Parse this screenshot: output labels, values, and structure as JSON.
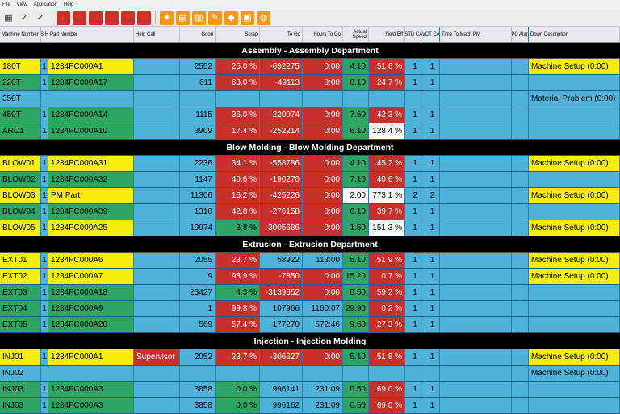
{
  "menu": [
    "File",
    "View",
    "Application",
    "Help"
  ],
  "toolbar_icons": [
    {
      "name": "grid-icon",
      "glyph": "▦",
      "style": "plain"
    },
    {
      "name": "checklist-icon",
      "glyph": "✓",
      "style": "plain"
    },
    {
      "name": "checklist-all-icon",
      "glyph": "✓",
      "style": "plain"
    },
    {
      "name": "warning-icon",
      "glyph": "▲",
      "style": "red"
    },
    {
      "name": "search-alert-icon",
      "glyph": "⚙",
      "style": "red"
    },
    {
      "name": "help-icon",
      "glyph": "?",
      "style": "red"
    },
    {
      "name": "refresh-icon",
      "glyph": "↻",
      "style": "red"
    },
    {
      "name": "robot-arm-icon",
      "glyph": "⚒",
      "style": "red"
    },
    {
      "name": "settings-icon",
      "glyph": "⚙",
      "style": "red"
    },
    {
      "name": "burst-icon",
      "glyph": "✷",
      "style": "orange"
    },
    {
      "name": "document-icon",
      "glyph": "▤",
      "style": "orange"
    },
    {
      "name": "report-icon",
      "glyph": "▥",
      "style": "orange"
    },
    {
      "name": "wrench-icon",
      "glyph": "✎",
      "style": "orange"
    },
    {
      "name": "tag-icon",
      "glyph": "◆",
      "style": "orange"
    },
    {
      "name": "panel-icon",
      "glyph": "▣",
      "style": "orange"
    },
    {
      "name": "globe-icon",
      "glyph": "◍",
      "style": "orange"
    }
  ],
  "columns": [
    {
      "key": "machine",
      "label": "Machine Number",
      "align": "l"
    },
    {
      "key": "sh",
      "label": "S H",
      "align": "c"
    },
    {
      "key": "part",
      "label": "Part Number",
      "align": "l"
    },
    {
      "key": "help",
      "label": "Help Call",
      "align": "l"
    },
    {
      "key": "good",
      "label": "Good",
      "align": "r"
    },
    {
      "key": "scrap",
      "label": "Scrap",
      "align": "r"
    },
    {
      "key": "togo",
      "label": "To Go",
      "align": "r"
    },
    {
      "key": "hours",
      "label": "Hours To Go",
      "align": "r"
    },
    {
      "key": "speed",
      "label": "Actual Speed",
      "align": "r"
    },
    {
      "key": "yield",
      "label": "Yield Eff",
      "align": "r"
    },
    {
      "key": "std",
      "label": "STD CAV",
      "align": "c"
    },
    {
      "key": "act",
      "label": "ACT CAV",
      "align": "c"
    },
    {
      "key": "pm",
      "label": "Time To Mach PM",
      "align": "l"
    },
    {
      "key": "spc",
      "label": "SPC Alarm",
      "align": "c"
    },
    {
      "key": "down",
      "label": "Down Description",
      "align": "l"
    }
  ],
  "departments": [
    {
      "title": "Assembly - Assembly Department",
      "rows": [
        {
          "machine": "180T",
          "mcolor": "yellow",
          "sh": "1",
          "part": "1234FC000A1",
          "help": "",
          "good": "2552",
          "scrap": "25.0 %",
          "togo": "-692275",
          "hours": "0:00",
          "speed": "4.10",
          "scolor": "green",
          "yield": "51.6 %",
          "ycolor": "red",
          "std": "1",
          "act": "1",
          "down": "Machine Setup (0:00)",
          "dcolor": "yellow"
        },
        {
          "machine": "220T",
          "mcolor": "green",
          "sh": "1",
          "part": "1234FC000A17",
          "help": "",
          "good": "611",
          "scrap": "63.0 %",
          "togo": "-49113",
          "hours": "0:00",
          "speed": "8.10",
          "scolor": "green",
          "yield": "24.7 %",
          "ycolor": "red",
          "std": "1",
          "act": "1",
          "down": "",
          "dcolor": "blue"
        },
        {
          "machine": "350T",
          "mcolor": "blue",
          "sh": "",
          "part": "",
          "help": "",
          "good": "",
          "scrap": "",
          "togo": "",
          "hours": "",
          "speed": "",
          "scolor": "blue",
          "yield": "",
          "ycolor": "blue",
          "std": "",
          "act": "",
          "down": "Material Problem (0:00)",
          "dcolor": "blue"
        },
        {
          "machine": "450T",
          "mcolor": "green",
          "sh": "1",
          "part": "1234FC000A14",
          "help": "",
          "good": "1115",
          "scrap": "36.0 %",
          "togo": "-220074",
          "hours": "0:00",
          "speed": "7.60",
          "scolor": "green",
          "yield": "42.3 %",
          "ycolor": "red",
          "std": "1",
          "act": "1",
          "down": "",
          "dcolor": "blue"
        },
        {
          "machine": "ARC1",
          "mcolor": "green",
          "sh": "1",
          "part": "1234FC000A10",
          "help": "",
          "good": "3909",
          "scrap": "17.4 %",
          "togo": "-252214",
          "hours": "0:00",
          "speed": "6.10",
          "scolor": "green",
          "yield": "128.4 %",
          "ycolor": "white",
          "std": "1",
          "act": "1",
          "down": "",
          "dcolor": "blue"
        }
      ]
    },
    {
      "title": "Blow Molding - Blow Molding Department",
      "rows": [
        {
          "machine": "BLOW01",
          "mcolor": "yellow",
          "sh": "1",
          "part": "1234FC000A31",
          "help": "",
          "good": "2236",
          "scrap": "34.1 %",
          "togo": "-558786",
          "hours": "0:00",
          "speed": "4.10",
          "scolor": "green",
          "yield": "45.2 %",
          "ycolor": "red",
          "std": "1",
          "act": "1",
          "down": "Machine Setup (0:00)",
          "dcolor": "yellow"
        },
        {
          "machine": "BLOW02",
          "mcolor": "green",
          "sh": "1",
          "part": "1234FC000A32",
          "help": "",
          "good": "1147",
          "scrap": "40.6 %",
          "togo": "-190270",
          "hours": "0:00",
          "speed": "7.10",
          "scolor": "green",
          "yield": "40.6 %",
          "ycolor": "red",
          "std": "1",
          "act": "1",
          "down": "",
          "dcolor": "blue"
        },
        {
          "machine": "BLOW03",
          "mcolor": "yellow",
          "sh": "1",
          "part": "PM Part",
          "help": "",
          "good": "11306",
          "scrap": "16.2 %",
          "togo": "-425226",
          "hours": "0:00",
          "speed": "2.00",
          "scolor": "white",
          "yield": "773.1 %",
          "ycolor": "white",
          "std": "2",
          "act": "2",
          "down": "Machine Setup (0:00)",
          "dcolor": "yellow"
        },
        {
          "machine": "BLOW04",
          "mcolor": "green",
          "sh": "1",
          "part": "1234FC000A39",
          "help": "",
          "good": "1310",
          "scrap": "42.8 %",
          "togo": "-276158",
          "hours": "0:00",
          "speed": "6.10",
          "scolor": "green",
          "yield": "39.7 %",
          "ycolor": "red",
          "std": "1",
          "act": "1",
          "down": "",
          "dcolor": "blue"
        },
        {
          "machine": "BLOW05",
          "mcolor": "yellow",
          "sh": "1",
          "part": "1234FC000A25",
          "help": "",
          "good": "19974",
          "scrap": "3.8 %",
          "togo": "-3005686",
          "hours": "0:00",
          "speed": "1.50",
          "scolor": "green",
          "yield": "151.3 %",
          "ycolor": "white",
          "std": "1",
          "act": "1",
          "down": "Machine Setup (0:00)",
          "dcolor": "yellow",
          "scrapcolor": "green"
        }
      ]
    },
    {
      "title": "Extrusion - Extrusion Department",
      "rows": [
        {
          "machine": "EXT01",
          "mcolor": "yellow",
          "sh": "1",
          "part": "1234FC000A6",
          "help": "",
          "good": "2055",
          "scrap": "23.7 %",
          "togo": "58922",
          "hours": "113:00",
          "speed": "5.10",
          "scolor": "green",
          "yield": "51.9 %",
          "ycolor": "red",
          "std": "1",
          "act": "1",
          "down": "Machine Setup (0:00)",
          "dcolor": "yellow",
          "togocolor": "blue",
          "hourscolor": "blue"
        },
        {
          "machine": "EXT02",
          "mcolor": "yellow",
          "sh": "1",
          "part": "1234FC000A7",
          "help": "",
          "good": "9",
          "scrap": "98.9 %",
          "togo": "-7850",
          "hours": "0:00",
          "speed": "15.20",
          "scolor": "green",
          "yield": "0.7 %",
          "ycolor": "red",
          "std": "1",
          "act": "1",
          "down": "Machine Setup (0:00)",
          "dcolor": "yellow"
        },
        {
          "machine": "EXT03",
          "mcolor": "green",
          "sh": "1",
          "part": "1234FC000A18",
          "help": "",
          "good": "23427",
          "scrap": "4.3 %",
          "togo": "-3139652",
          "hours": "0:00",
          "speed": "0.50",
          "scolor": "green",
          "yield": "59.2 %",
          "ycolor": "red",
          "std": "1",
          "act": "1",
          "down": "",
          "dcolor": "blue",
          "scrapcolor": "green"
        },
        {
          "machine": "EXT04",
          "mcolor": "green",
          "sh": "1",
          "part": "1234FC000A9",
          "help": "",
          "good": "1",
          "scrap": "99.8 %",
          "togo": "107966",
          "hours": "1160:07",
          "speed": "29.90",
          "scolor": "green",
          "yield": "0.2 %",
          "ycolor": "red",
          "std": "1",
          "act": "1",
          "down": "",
          "dcolor": "blue",
          "togocolor": "blue",
          "hourscolor": "blue"
        },
        {
          "machine": "EXT05",
          "mcolor": "green",
          "sh": "1",
          "part": "1234FC000A20",
          "help": "",
          "good": "569",
          "scrap": "57.4 %",
          "togo": "177270",
          "hours": "572:46",
          "speed": "9.60",
          "scolor": "green",
          "yield": "27.3 %",
          "ycolor": "red",
          "std": "1",
          "act": "1",
          "down": "",
          "dcolor": "blue",
          "togocolor": "blue",
          "hourscolor": "blue"
        }
      ]
    },
    {
      "title": "Injection - Injection Molding",
      "rows": [
        {
          "machine": "INJ01",
          "mcolor": "yellow",
          "sh": "1",
          "part": "1234FC000A1",
          "help": "Supervisor",
          "good": "2052",
          "scrap": "23.7 %",
          "togo": "-306627",
          "hours": "0:00",
          "speed": "5.10",
          "scolor": "green",
          "yield": "51.8 %",
          "ycolor": "red",
          "std": "1",
          "act": "1",
          "down": "Machine Setup (0:00)",
          "dcolor": "yellow",
          "helpcolor": "maroon"
        },
        {
          "machine": "INJ02",
          "mcolor": "blue",
          "sh": "",
          "part": "",
          "help": "",
          "good": "",
          "scrap": "",
          "togo": "",
          "hours": "",
          "speed": "",
          "scolor": "blue",
          "yield": "",
          "ycolor": "blue",
          "std": "",
          "act": "",
          "down": "Machine Setup (0:00)",
          "dcolor": "blue"
        },
        {
          "machine": "INJ03",
          "mcolor": "green",
          "sh": "1",
          "part": "1234FC000A3",
          "help": "",
          "good": "3858",
          "scrap": "0.0 %",
          "togo": "996141",
          "hours": "231:09",
          "speed": "0.50",
          "scolor": "green",
          "yield": "69.0 %",
          "ycolor": "red",
          "std": "1",
          "act": "1",
          "down": "",
          "dcolor": "blue",
          "scrapcolor": "green",
          "togocolor": "blue",
          "hourscolor": "blue"
        },
        {
          "machine": "INJ03",
          "mcolor": "green",
          "sh": "1",
          "part": "1234FC000A3",
          "help": "",
          "good": "3858",
          "scrap": "0.0 %",
          "togo": "996162",
          "hours": "231:09",
          "speed": "0.50",
          "scolor": "green",
          "yield": "69.0 %",
          "ycolor": "red",
          "std": "1",
          "act": "1",
          "down": "",
          "dcolor": "blue",
          "scrapcolor": "green",
          "togocolor": "blue",
          "hourscolor": "blue"
        }
      ]
    }
  ]
}
